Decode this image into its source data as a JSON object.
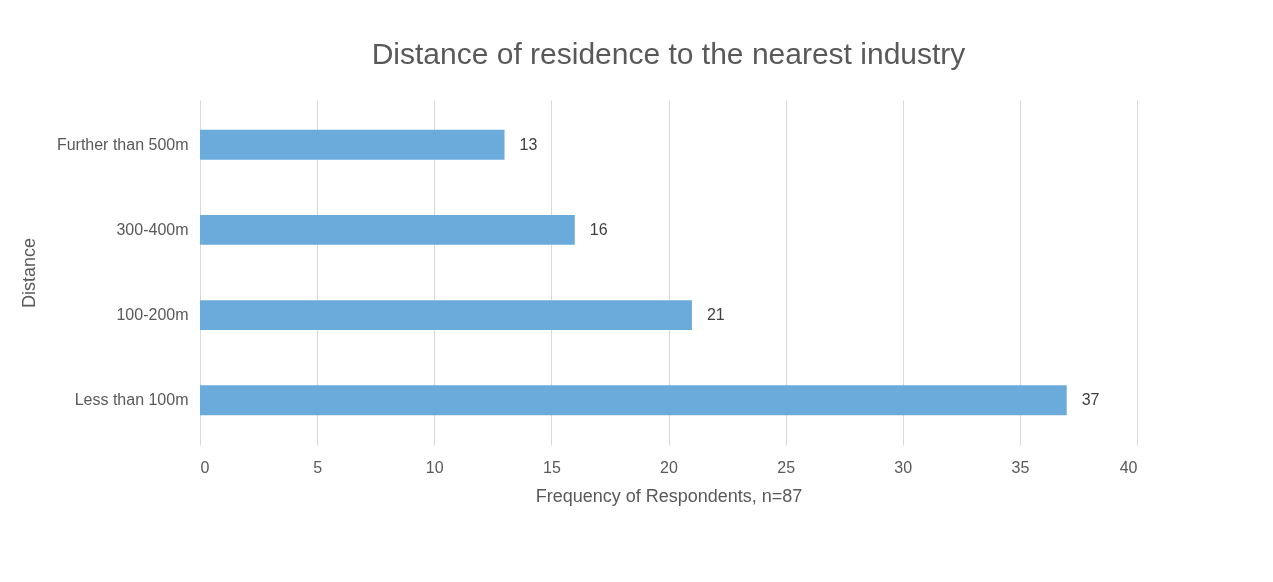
{
  "chart_data": {
    "type": "bar",
    "orientation": "horizontal",
    "title": "Distance of  residence to the nearest industry",
    "xlabel": "Frequency of Respondents, n=87",
    "ylabel": "Distance",
    "categories": [
      "Further than 500m",
      "300-400m",
      "100-200m",
      "Less than 100m"
    ],
    "values": [
      13,
      16,
      21,
      37
    ],
    "color": "#6aabdc",
    "xlim": [
      0,
      40
    ],
    "xticks": [
      0,
      5,
      10,
      15,
      20,
      25,
      30,
      35,
      40
    ],
    "grid": "x",
    "data_labels": true
  }
}
